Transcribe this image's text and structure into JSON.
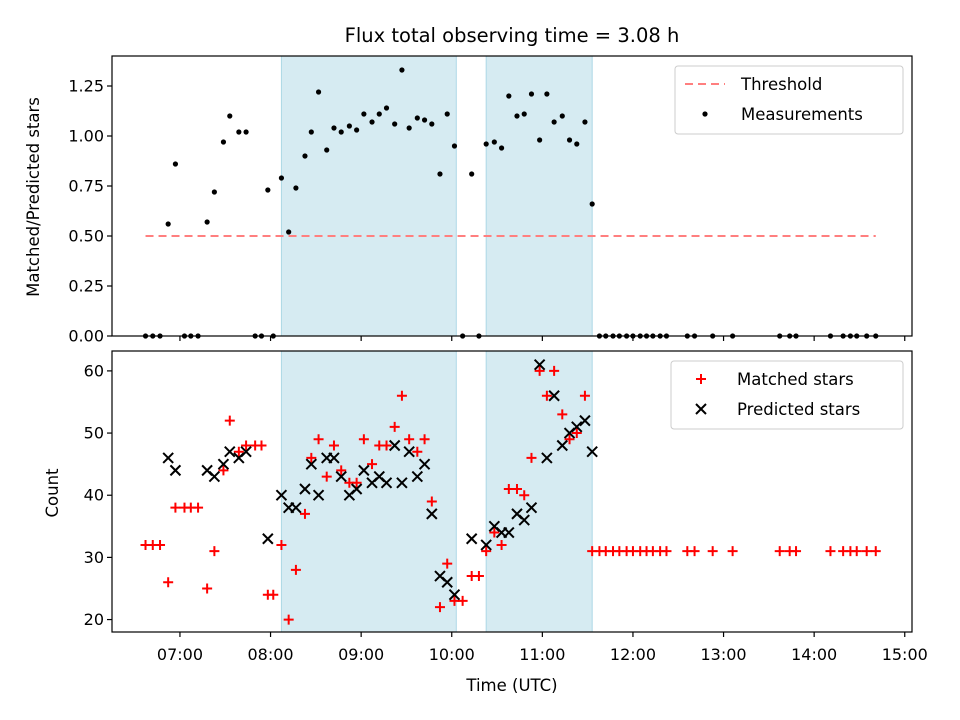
{
  "chart_data": {
    "title": "Flux total observing time = 3.08 h",
    "xlabel": "Time (UTC)",
    "x_unit": "hours UTC",
    "xlim": [
      6.25,
      15.08
    ],
    "x_ticks": [
      {
        "value": 7,
        "label": "07:00"
      },
      {
        "value": 8,
        "label": "08:00"
      },
      {
        "value": 9,
        "label": "09:00"
      },
      {
        "value": 10,
        "label": "10:00"
      },
      {
        "value": 11,
        "label": "11:00"
      },
      {
        "value": 12,
        "label": "12:00"
      },
      {
        "value": 13,
        "label": "13:00"
      },
      {
        "value": 14,
        "label": "14:00"
      },
      {
        "value": 15,
        "label": "15:00"
      }
    ],
    "shaded_intervals": [
      [
        8.12,
        10.05
      ],
      [
        10.38,
        11.55
      ]
    ],
    "shade_color": "#add8e6",
    "panels": [
      {
        "type": "scatter",
        "ylabel": "Matched/Predicted stars",
        "ylim": [
          0,
          1.4
        ],
        "y_ticks": [
          "0.00",
          "0.25",
          "0.50",
          "0.75",
          "1.00",
          "1.25"
        ],
        "legend_position": "upper right",
        "threshold": {
          "name": "Threshold",
          "value": 0.5,
          "x_range": [
            6.62,
            14.68
          ],
          "color": "#ff7f7f",
          "style": "dashed"
        },
        "series": [
          {
            "name": "Measurements",
            "marker": "dot",
            "color": "#000000",
            "points": [
              [
                6.62,
                0
              ],
              [
                6.7,
                0
              ],
              [
                6.78,
                0
              ],
              [
                6.87,
                0.56
              ],
              [
                6.95,
                0.86
              ],
              [
                7.05,
                0
              ],
              [
                7.12,
                0
              ],
              [
                7.2,
                0
              ],
              [
                7.3,
                0.57
              ],
              [
                7.38,
                0.72
              ],
              [
                7.48,
                0.97
              ],
              [
                7.55,
                1.1
              ],
              [
                7.65,
                1.02
              ],
              [
                7.73,
                1.02
              ],
              [
                7.83,
                0
              ],
              [
                7.9,
                0
              ],
              [
                7.97,
                0.73
              ],
              [
                8.03,
                0
              ],
              [
                8.12,
                0.79
              ],
              [
                8.2,
                0.52
              ],
              [
                8.28,
                0.74
              ],
              [
                8.38,
                0.9
              ],
              [
                8.45,
                1.02
              ],
              [
                8.53,
                1.22
              ],
              [
                8.62,
                0.93
              ],
              [
                8.7,
                1.04
              ],
              [
                8.78,
                1.02
              ],
              [
                8.87,
                1.05
              ],
              [
                8.95,
                1.03
              ],
              [
                9.03,
                1.11
              ],
              [
                9.12,
                1.07
              ],
              [
                9.2,
                1.11
              ],
              [
                9.28,
                1.14
              ],
              [
                9.37,
                1.06
              ],
              [
                9.45,
                1.33
              ],
              [
                9.53,
                1.04
              ],
              [
                9.62,
                1.09
              ],
              [
                9.7,
                1.08
              ],
              [
                9.78,
                1.06
              ],
              [
                9.87,
                0.81
              ],
              [
                9.95,
                1.11
              ],
              [
                10.03,
                0.95
              ],
              [
                10.12,
                0
              ],
              [
                10.22,
                0.81
              ],
              [
                10.3,
                0
              ],
              [
                10.38,
                0.96
              ],
              [
                10.47,
                0.97
              ],
              [
                10.55,
                0.94
              ],
              [
                10.63,
                1.2
              ],
              [
                10.72,
                1.1
              ],
              [
                10.8,
                1.11
              ],
              [
                10.88,
                1.21
              ],
              [
                10.97,
                0.98
              ],
              [
                11.05,
                1.21
              ],
              [
                11.13,
                1.07
              ],
              [
                11.22,
                1.1
              ],
              [
                11.3,
                0.98
              ],
              [
                11.38,
                0.96
              ],
              [
                11.47,
                1.07
              ],
              [
                11.55,
                0.66
              ],
              [
                11.63,
                0
              ],
              [
                11.7,
                0
              ],
              [
                11.78,
                0
              ],
              [
                11.85,
                0
              ],
              [
                11.93,
                0
              ],
              [
                12.0,
                0
              ],
              [
                12.08,
                0
              ],
              [
                12.15,
                0
              ],
              [
                12.22,
                0
              ],
              [
                12.3,
                0
              ],
              [
                12.37,
                0
              ],
              [
                12.6,
                0
              ],
              [
                12.68,
                0
              ],
              [
                12.88,
                0
              ],
              [
                13.1,
                0
              ],
              [
                13.62,
                0
              ],
              [
                13.73,
                0
              ],
              [
                13.8,
                0
              ],
              [
                14.18,
                0
              ],
              [
                14.32,
                0
              ],
              [
                14.4,
                0
              ],
              [
                14.47,
                0
              ],
              [
                14.58,
                0
              ],
              [
                14.68,
                0
              ]
            ]
          }
        ]
      },
      {
        "type": "scatter",
        "ylabel": "Count",
        "ylim": [
          18,
          63.2
        ],
        "y_ticks": [
          "20",
          "30",
          "40",
          "50",
          "60"
        ],
        "legend_position": "upper right",
        "series": [
          {
            "name": "Matched stars",
            "marker": "plus",
            "color": "#ff0000",
            "points": [
              [
                6.62,
                32
              ],
              [
                6.7,
                32
              ],
              [
                6.78,
                32
              ],
              [
                6.87,
                26
              ],
              [
                6.95,
                38
              ],
              [
                7.05,
                38
              ],
              [
                7.12,
                38
              ],
              [
                7.2,
                38
              ],
              [
                7.3,
                25
              ],
              [
                7.38,
                31
              ],
              [
                7.48,
                44
              ],
              [
                7.55,
                52
              ],
              [
                7.65,
                47
              ],
              [
                7.73,
                48
              ],
              [
                7.83,
                48
              ],
              [
                7.9,
                48
              ],
              [
                7.97,
                24
              ],
              [
                8.03,
                24
              ],
              [
                8.12,
                32
              ],
              [
                8.2,
                20
              ],
              [
                8.28,
                28
              ],
              [
                8.38,
                37
              ],
              [
                8.45,
                46
              ],
              [
                8.53,
                49
              ],
              [
                8.62,
                43
              ],
              [
                8.7,
                48
              ],
              [
                8.78,
                44
              ],
              [
                8.87,
                42
              ],
              [
                8.95,
                42
              ],
              [
                9.03,
                49
              ],
              [
                9.12,
                45
              ],
              [
                9.2,
                48
              ],
              [
                9.28,
                48
              ],
              [
                9.37,
                51
              ],
              [
                9.45,
                56
              ],
              [
                9.53,
                49
              ],
              [
                9.62,
                47
              ],
              [
                9.7,
                49
              ],
              [
                9.78,
                39
              ],
              [
                9.87,
                22
              ],
              [
                9.95,
                29
              ],
              [
                10.03,
                23
              ],
              [
                10.12,
                23
              ],
              [
                10.22,
                27
              ],
              [
                10.3,
                27
              ],
              [
                10.38,
                31
              ],
              [
                10.47,
                34
              ],
              [
                10.55,
                32
              ],
              [
                10.63,
                41
              ],
              [
                10.72,
                41
              ],
              [
                10.8,
                40
              ],
              [
                10.88,
                46
              ],
              [
                10.97,
                60
              ],
              [
                11.05,
                56
              ],
              [
                11.13,
                60
              ],
              [
                11.22,
                53
              ],
              [
                11.3,
                49
              ],
              [
                11.38,
                50
              ],
              [
                11.47,
                56
              ],
              [
                11.55,
                31
              ],
              [
                11.63,
                31
              ],
              [
                11.7,
                31
              ],
              [
                11.78,
                31
              ],
              [
                11.85,
                31
              ],
              [
                11.93,
                31
              ],
              [
                12.0,
                31
              ],
              [
                12.08,
                31
              ],
              [
                12.15,
                31
              ],
              [
                12.22,
                31
              ],
              [
                12.3,
                31
              ],
              [
                12.37,
                31
              ],
              [
                12.6,
                31
              ],
              [
                12.68,
                31
              ],
              [
                12.88,
                31
              ],
              [
                13.1,
                31
              ],
              [
                13.62,
                31
              ],
              [
                13.73,
                31
              ],
              [
                13.8,
                31
              ],
              [
                14.18,
                31
              ],
              [
                14.32,
                31
              ],
              [
                14.4,
                31
              ],
              [
                14.47,
                31
              ],
              [
                14.58,
                31
              ],
              [
                14.68,
                31
              ]
            ]
          },
          {
            "name": "Predicted stars",
            "marker": "x",
            "color": "#000000",
            "points": [
              [
                6.87,
                46
              ],
              [
                6.95,
                44
              ],
              [
                7.3,
                44
              ],
              [
                7.38,
                43
              ],
              [
                7.48,
                45
              ],
              [
                7.55,
                47
              ],
              [
                7.65,
                46
              ],
              [
                7.73,
                47
              ],
              [
                7.97,
                33
              ],
              [
                8.12,
                40
              ],
              [
                8.2,
                38
              ],
              [
                8.28,
                38
              ],
              [
                8.38,
                41
              ],
              [
                8.45,
                45
              ],
              [
                8.53,
                40
              ],
              [
                8.62,
                46
              ],
              [
                8.7,
                46
              ],
              [
                8.78,
                43
              ],
              [
                8.87,
                40
              ],
              [
                8.95,
                41
              ],
              [
                9.03,
                44
              ],
              [
                9.12,
                42
              ],
              [
                9.2,
                43
              ],
              [
                9.28,
                42
              ],
              [
                9.37,
                48
              ],
              [
                9.45,
                42
              ],
              [
                9.53,
                47
              ],
              [
                9.62,
                43
              ],
              [
                9.7,
                45
              ],
              [
                9.78,
                37
              ],
              [
                9.87,
                27
              ],
              [
                9.95,
                26
              ],
              [
                10.03,
                24
              ],
              [
                10.22,
                33
              ],
              [
                10.38,
                32
              ],
              [
                10.47,
                35
              ],
              [
                10.55,
                34
              ],
              [
                10.63,
                34
              ],
              [
                10.72,
                37
              ],
              [
                10.8,
                36
              ],
              [
                10.88,
                38
              ],
              [
                10.97,
                61
              ],
              [
                11.05,
                46
              ],
              [
                11.13,
                56
              ],
              [
                11.22,
                48
              ],
              [
                11.3,
                50
              ],
              [
                11.38,
                51
              ],
              [
                11.47,
                52
              ],
              [
                11.55,
                47
              ]
            ]
          }
        ]
      }
    ]
  }
}
